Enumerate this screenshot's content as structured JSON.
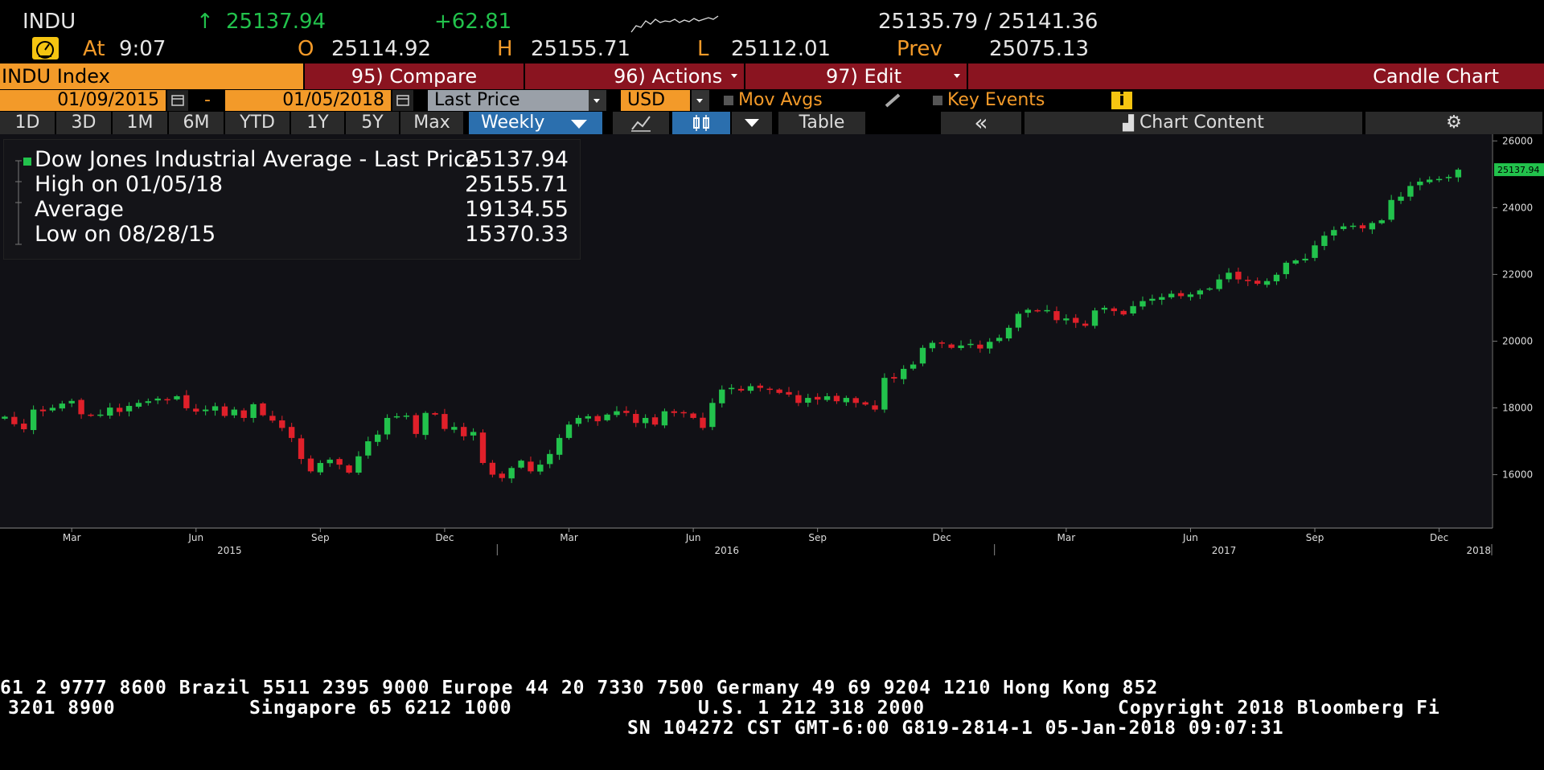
{
  "quote": {
    "ticker": "INDU",
    "arrow": "↑",
    "last": "25137.94",
    "change": "+62.81",
    "bid_ask": "25135.79 / 25141.36",
    "at_label": "At",
    "time": "9:07",
    "open_label": "O",
    "open": "25114.92",
    "high_label": "H",
    "high": "25155.71",
    "low_label": "L",
    "low": "25112.01",
    "prev_label": "Prev",
    "prev": "25075.13",
    "speed_icon": "speedometer-icon"
  },
  "toolbar": {
    "security": "INDU Index",
    "compare": "95) Compare",
    "actions": "96) Actions",
    "edit": "97) Edit",
    "chart_type": "Candle Chart"
  },
  "range": {
    "start": "01/09/2015",
    "dash": "-",
    "end": "01/05/2018",
    "field": "Last Price",
    "currency": "USD",
    "mov_avgs": "Mov Avgs",
    "key_events": "Key Events",
    "info": "i"
  },
  "periods": {
    "items": [
      "1D",
      "3D",
      "1M",
      "6M",
      "YTD",
      "1Y",
      "5Y",
      "Max"
    ],
    "frequency": "Weekly",
    "table": "Table",
    "collapse": "«",
    "chart_content": "Chart Content",
    "settings_icon": "gear-icon"
  },
  "legend": {
    "rows": [
      {
        "label": "Dow Jones Industrial Average - Last Price",
        "value": "25137.94"
      },
      {
        "label": "High on 01/05/18",
        "value": "25155.71"
      },
      {
        "label": "Average",
        "value": "19134.55"
      },
      {
        "label": "Low on 08/28/15",
        "value": "15370.33"
      }
    ]
  },
  "footer": {
    "line1": "61 2 9777 8600 Brazil 5511 2395 9000 Europe 44 20 7330 7500 Germany 49 69 9204 1210 Hong Kong 852",
    "line2a": "3201 8900",
    "line2b": "Singapore 65 6212 1000",
    "line2c": "U.S. 1 212 318 2000",
    "line2d": "Copyright 2018 Bloomberg Fi",
    "line3": "SN 104272 CST  GMT-6:00 G819-2814-1 05-Jan-2018 09:07:31"
  },
  "colors": {
    "up": "#22c24c",
    "down": "#e0202a",
    "accent": "#f39a29",
    "toolbar_red": "#8a1420"
  },
  "chart_data": {
    "type": "candlestick",
    "frequency": "weekly",
    "y_ticks": [
      16000,
      18000,
      20000,
      22000,
      24000,
      26000
    ],
    "ylim": [
      14400,
      26200
    ],
    "x_month_labels": [
      "Mar",
      "Jun",
      "Sep",
      "Dec",
      "Mar",
      "Jun",
      "Sep",
      "Dec",
      "Mar",
      "Jun",
      "Sep",
      "Dec"
    ],
    "x_year_labels": [
      "2015",
      "2016",
      "2017",
      "2018"
    ],
    "last_price_tag": "25137.94",
    "xlim": [
      0,
      156
    ],
    "month_positions": [
      7.5,
      20.5,
      33.5,
      46.5,
      59.5,
      72.5,
      85.5,
      98.5,
      111.5,
      124.5,
      137.5,
      150.5
    ],
    "year_positions": [
      24,
      76,
      128,
      156
    ],
    "closes": [
      17737,
      17512,
      17361,
      17950,
      17900,
      18002,
      18130,
      18210,
      17810,
      17770,
      17800,
      18010,
      17880,
      18060,
      18150,
      18200,
      18280,
      18250,
      18350,
      17990,
      17890,
      17950,
      18050,
      17760,
      17950,
      17700,
      18110,
      17780,
      17620,
      17400,
      17100,
      16470,
      16100,
      16350,
      16450,
      16300,
      16060,
      16550,
      17000,
      17200,
      17700,
      17750,
      17770,
      17220,
      17850,
      17800,
      17370,
      17430,
      17150,
      17280,
      16350,
      16000,
      15900,
      16200,
      16420,
      16100,
      16300,
      16620,
      17100,
      17500,
      17700,
      17750,
      17600,
      17800,
      17900,
      17850,
      17550,
      17700,
      17500,
      17900,
      17850,
      17850,
      17700,
      17400,
      18150,
      18550,
      18600,
      18520,
      18650,
      18600,
      18550,
      18450,
      18400,
      18150,
      18300,
      18250,
      18350,
      18200,
      18300,
      18150,
      18100,
      17950,
      18900,
      18880,
      19170,
      19300,
      19800,
      19950,
      19930,
      19800,
      19870,
      19920,
      19780,
      19980,
      20100,
      20400,
      20820,
      20940,
      20900,
      20930,
      20630,
      20680,
      20550,
      20460,
      20920,
      21000,
      20900,
      20800,
      21050,
      21200,
      21270,
      21320,
      21420,
      21350,
      21400,
      21520,
      21580,
      21850,
      22050,
      21850,
      21800,
      21720,
      21800,
      21990,
      22350,
      22420,
      22470,
      22870,
      23160,
      23330,
      23440,
      23460,
      23380,
      23540,
      23620,
      24230,
      24330,
      24650,
      24780,
      24840,
      24860,
      24920,
      25138
    ],
    "note": "weekly closes Jan 2015 - Jan 2018, values in index points"
  }
}
